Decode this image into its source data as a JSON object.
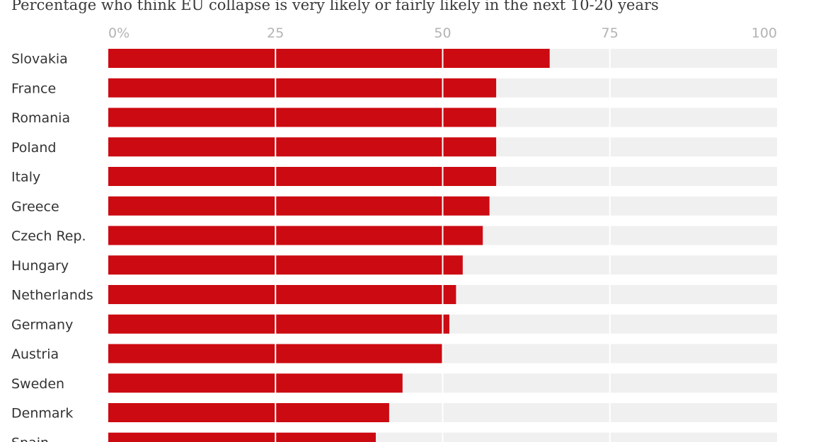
{
  "chart_data": {
    "type": "bar",
    "orientation": "horizontal",
    "title": "Percentage who think EU collapse is very likely or fairly likely in the next 10-20 years",
    "xlabel": "",
    "ylabel": "",
    "xlim": [
      0,
      100
    ],
    "ticks": [
      {
        "value": 0,
        "label": "0%"
      },
      {
        "value": 25,
        "label": "25"
      },
      {
        "value": 50,
        "label": "50"
      },
      {
        "value": 75,
        "label": "75"
      },
      {
        "value": 100,
        "label": "100"
      }
    ],
    "categories": [
      "Slovakia",
      "France",
      "Romania",
      "Poland",
      "Italy",
      "Greece",
      "Czech Rep.",
      "Hungary",
      "Netherlands",
      "Germany",
      "Austria",
      "Sweden",
      "Denmark",
      "Spain"
    ],
    "values": [
      66,
      58,
      58,
      58,
      58,
      57,
      56,
      53,
      52,
      51,
      50,
      44,
      42,
      40
    ],
    "colors": {
      "bar": "#cc0a11",
      "track": "#f0f0f0",
      "gridline": "#ffffff"
    }
  }
}
